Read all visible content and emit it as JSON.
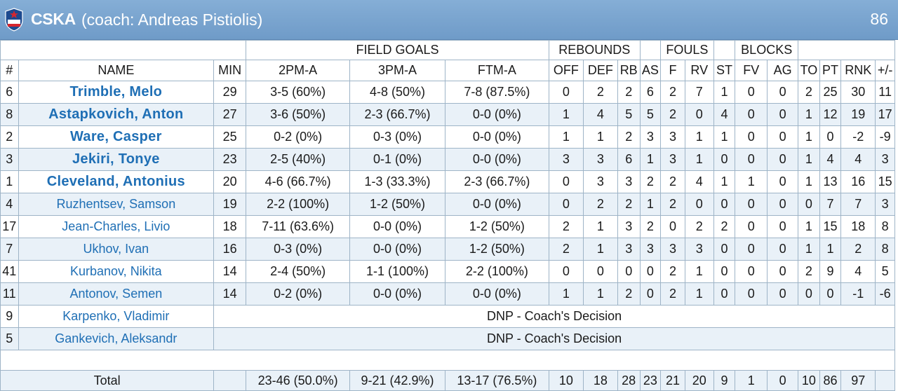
{
  "team": {
    "name": "CSKA",
    "coach": "(coach: Andreas Pistiolis)",
    "score": "86",
    "colors": {
      "header": "#7aa5d0",
      "player_link": "#1f6fb5",
      "alt_row": "#e9f1f8"
    }
  },
  "groups": {
    "field_goals": "FIELD GOALS",
    "rebounds": "REBOUNDS",
    "fouls": "FOULS",
    "blocks": "BLOCKS"
  },
  "columns": [
    "#",
    "NAME",
    "MIN",
    "2PM-A",
    "3PM-A",
    "FTM-A",
    "OFF",
    "DEF",
    "RB",
    "AS",
    "F",
    "RV",
    "ST",
    "FV",
    "AG",
    "TO",
    "PT",
    "RNK",
    "+/-"
  ],
  "players": [
    {
      "num": "6",
      "name": "Trimble, Melo",
      "starter": true,
      "stats": [
        "29",
        "3-5 (60%)",
        "4-8 (50%)",
        "7-8 (87.5%)",
        "0",
        "2",
        "2",
        "6",
        "2",
        "7",
        "1",
        "0",
        "0",
        "2",
        "25",
        "30",
        "11"
      ]
    },
    {
      "num": "8",
      "name": "Astapkovich, Anton",
      "starter": true,
      "stats": [
        "27",
        "3-6 (50%)",
        "2-3 (66.7%)",
        "0-0 (0%)",
        "1",
        "4",
        "5",
        "5",
        "2",
        "0",
        "4",
        "0",
        "0",
        "1",
        "12",
        "19",
        "17"
      ]
    },
    {
      "num": "2",
      "name": "Ware, Casper",
      "starter": true,
      "stats": [
        "25",
        "0-2 (0%)",
        "0-3 (0%)",
        "0-0 (0%)",
        "1",
        "1",
        "2",
        "3",
        "3",
        "1",
        "1",
        "0",
        "0",
        "1",
        "0",
        "-2",
        "-9"
      ]
    },
    {
      "num": "3",
      "name": "Jekiri, Tonye",
      "starter": true,
      "stats": [
        "23",
        "2-5 (40%)",
        "0-1 (0%)",
        "0-0 (0%)",
        "3",
        "3",
        "6",
        "1",
        "3",
        "1",
        "0",
        "0",
        "0",
        "1",
        "4",
        "4",
        "3"
      ]
    },
    {
      "num": "1",
      "name": "Cleveland, Antonius",
      "starter": true,
      "stats": [
        "20",
        "4-6 (66.7%)",
        "1-3 (33.3%)",
        "2-3 (66.7%)",
        "0",
        "3",
        "3",
        "2",
        "2",
        "4",
        "1",
        "1",
        "0",
        "1",
        "13",
        "16",
        "15"
      ]
    },
    {
      "num": "4",
      "name": "Ruzhentsev, Samson",
      "starter": false,
      "stats": [
        "19",
        "2-2 (100%)",
        "1-2 (50%)",
        "0-0 (0%)",
        "0",
        "2",
        "2",
        "1",
        "2",
        "0",
        "0",
        "0",
        "0",
        "0",
        "7",
        "7",
        "3"
      ]
    },
    {
      "num": "17",
      "name": "Jean-Charles, Livio",
      "starter": false,
      "stats": [
        "18",
        "7-11 (63.6%)",
        "0-0 (0%)",
        "1-2 (50%)",
        "2",
        "1",
        "3",
        "2",
        "0",
        "2",
        "2",
        "0",
        "0",
        "1",
        "15",
        "18",
        "8"
      ]
    },
    {
      "num": "7",
      "name": "Ukhov, Ivan",
      "starter": false,
      "stats": [
        "16",
        "0-3 (0%)",
        "0-0 (0%)",
        "1-2 (50%)",
        "2",
        "1",
        "3",
        "3",
        "3",
        "3",
        "0",
        "0",
        "0",
        "1",
        "1",
        "2",
        "8"
      ]
    },
    {
      "num": "41",
      "name": "Kurbanov, Nikita",
      "starter": false,
      "stats": [
        "14",
        "2-4 (50%)",
        "1-1 (100%)",
        "2-2 (100%)",
        "0",
        "0",
        "0",
        "0",
        "2",
        "1",
        "0",
        "0",
        "0",
        "2",
        "9",
        "4",
        "5"
      ]
    },
    {
      "num": "11",
      "name": "Antonov, Semen",
      "starter": false,
      "stats": [
        "14",
        "0-2 (0%)",
        "0-0 (0%)",
        "0-0 (0%)",
        "1",
        "1",
        "2",
        "0",
        "2",
        "1",
        "0",
        "0",
        "0",
        "0",
        "0",
        "-1",
        "-6"
      ]
    }
  ],
  "dnp": [
    {
      "num": "9",
      "name": "Karpenko, Vladimir",
      "note": "DNP - Coach's Decision"
    },
    {
      "num": "5",
      "name": "Gankevich, Aleksandr",
      "note": "DNP - Coach's Decision"
    }
  ],
  "total": {
    "label": "Total",
    "stats": [
      "",
      "23-46 (50.0%)",
      "9-21 (42.9%)",
      "13-17 (76.5%)",
      "10",
      "18",
      "28",
      "23",
      "21",
      "20",
      "9",
      "1",
      "0",
      "10",
      "86",
      "97",
      ""
    ]
  }
}
